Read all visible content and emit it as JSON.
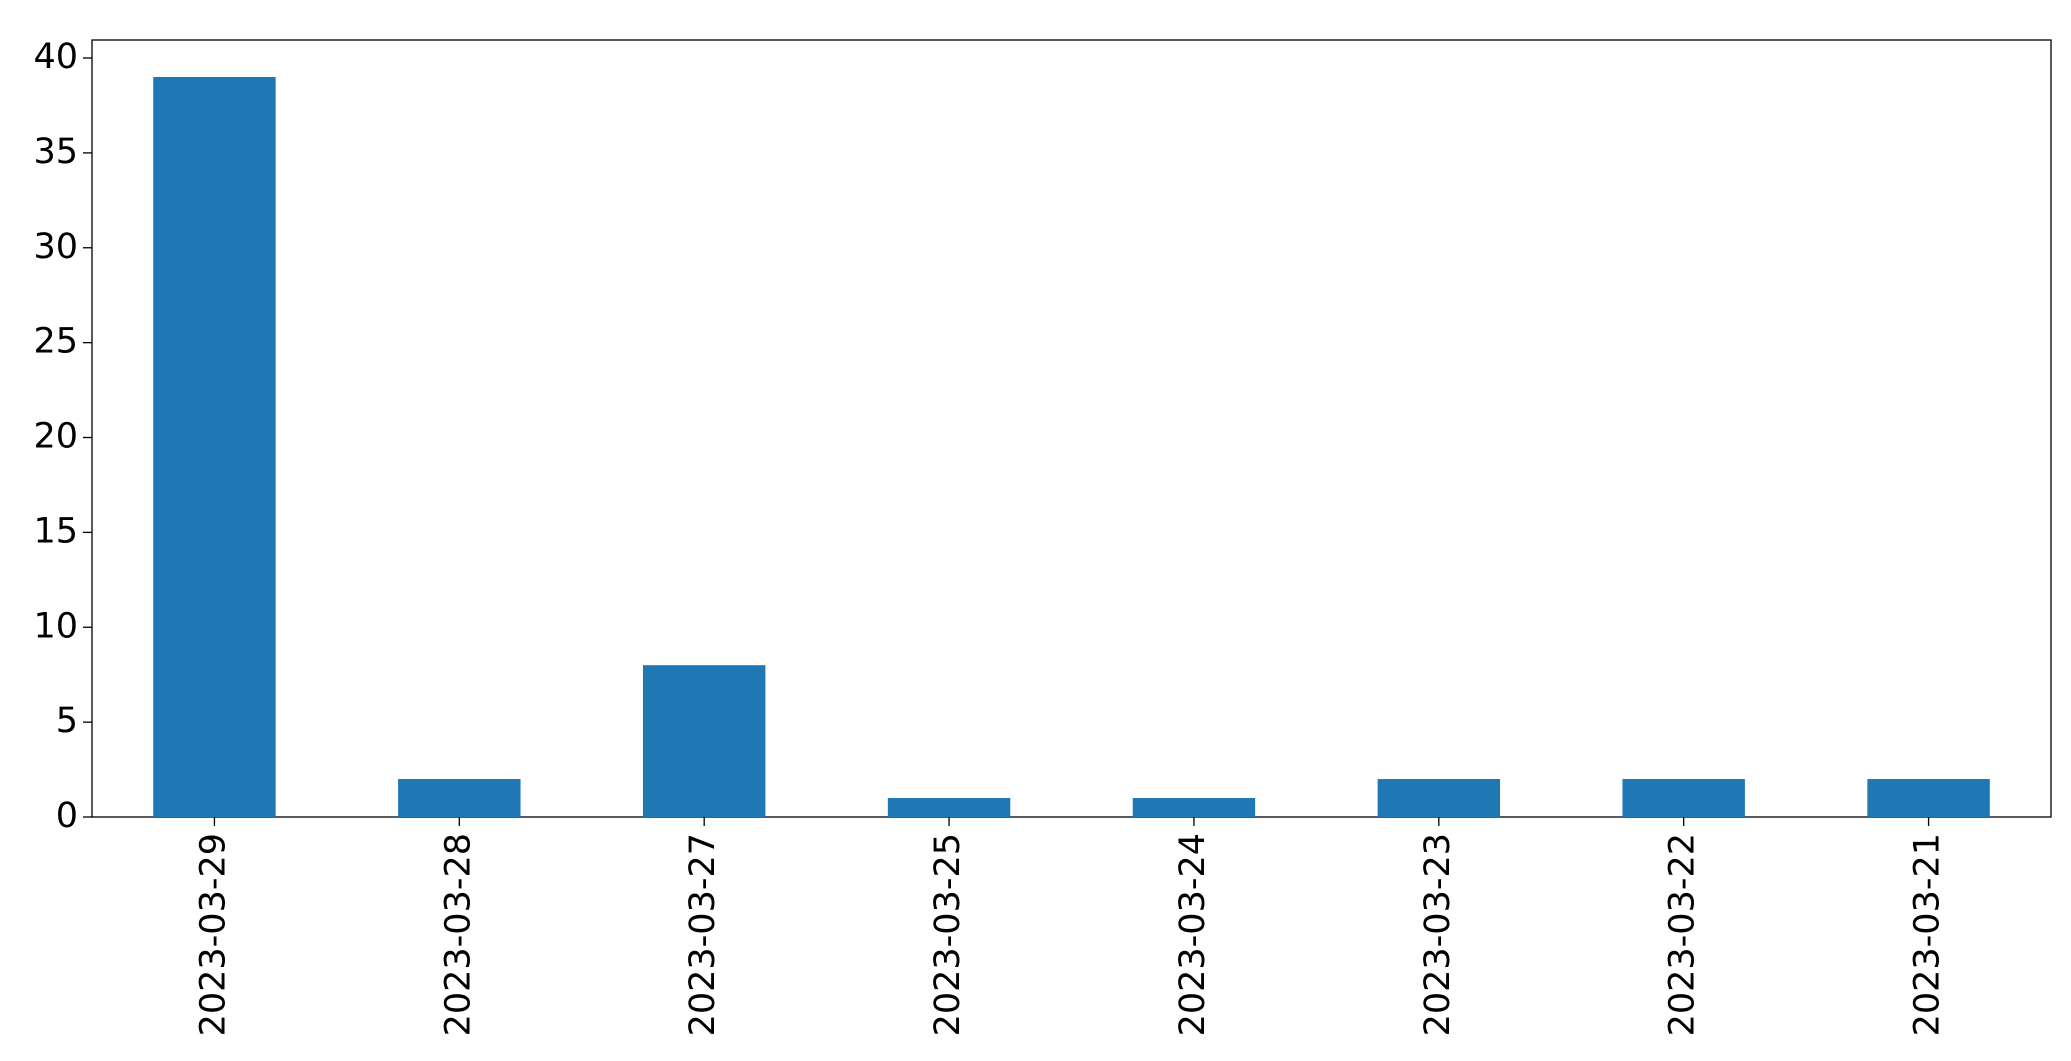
{
  "chart_data": {
    "type": "bar",
    "categories": [
      "2023-03-29",
      "2023-03-28",
      "2023-03-27",
      "2023-03-25",
      "2023-03-24",
      "2023-03-23",
      "2023-03-22",
      "2023-03-21"
    ],
    "values": [
      39,
      2,
      8,
      1,
      1,
      2,
      2,
      2
    ],
    "color": "#1f77b4",
    "ylim": [
      0,
      40.95
    ],
    "yticks": [
      0,
      5,
      10,
      15,
      20,
      25,
      30,
      35,
      40
    ],
    "grid": false
  }
}
